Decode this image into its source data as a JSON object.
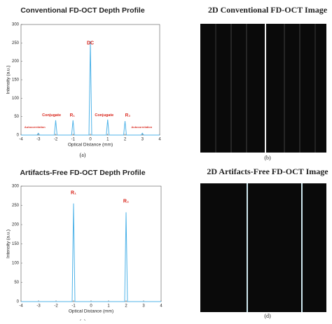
{
  "chart_data": [
    {
      "type": "line",
      "title": "Conventional FD-OCT Depth Profile",
      "x_label": "Optical Distance (mm)",
      "y_label": "Intensity (a.u.)",
      "caption": "(a)",
      "xlim": [
        -4,
        4
      ],
      "xticks": [
        -4,
        -3,
        -2,
        -1,
        0,
        1,
        2,
        3,
        4
      ],
      "ylim": [
        0,
        300
      ],
      "yticks": [
        0,
        50,
        100,
        150,
        200,
        250,
        300
      ],
      "series": [
        {
          "color": "#4fb3e8",
          "x": [
            -4,
            -3.08,
            -3,
            -2.92,
            -2.08,
            -2,
            -1.92,
            -1.08,
            -1,
            -0.92,
            -0.08,
            0,
            0.08,
            0.92,
            1,
            1.08,
            1.92,
            2,
            2.08,
            2.92,
            3,
            3.08,
            4
          ],
          "values": [
            0,
            0,
            5,
            0,
            0,
            40,
            0,
            0,
            40,
            0,
            0,
            255,
            0,
            0,
            42,
            0,
            0,
            38,
            0,
            0,
            5,
            0,
            0
          ]
        }
      ],
      "annotations": [
        "DC",
        "Conjugate",
        "R₁",
        "Conjugate",
        "R₂",
        "Autocorrelation",
        "Autocorrelation"
      ]
    },
    {
      "type": "line",
      "title": "Artifacts-Free FD-OCT Depth Profile",
      "x_label": "Optical Distance (mm)",
      "y_label": "Intensity (a.u.)",
      "caption": "(c)",
      "xlim": [
        -4,
        4
      ],
      "xticks": [
        -4,
        -3,
        -2,
        -1,
        0,
        1,
        2,
        3,
        4
      ],
      "ylim": [
        0,
        300
      ],
      "yticks": [
        0,
        50,
        100,
        150,
        200,
        250,
        300
      ],
      "series": [
        {
          "color": "#4fb3e8",
          "x": [
            -4,
            -1.08,
            -1,
            -0.92,
            1.92,
            2,
            2.08,
            4
          ],
          "values": [
            0,
            0,
            255,
            0,
            0,
            232,
            0,
            0
          ]
        }
      ],
      "annotations": [
        "R₁",
        "R₂"
      ]
    }
  ],
  "images": [
    {
      "title": "2D Conventional FD-OCT Image",
      "caption": "(b)"
    },
    {
      "title": "2D Artifacts-Free FD-OCT Image",
      "caption": "(d)"
    }
  ]
}
